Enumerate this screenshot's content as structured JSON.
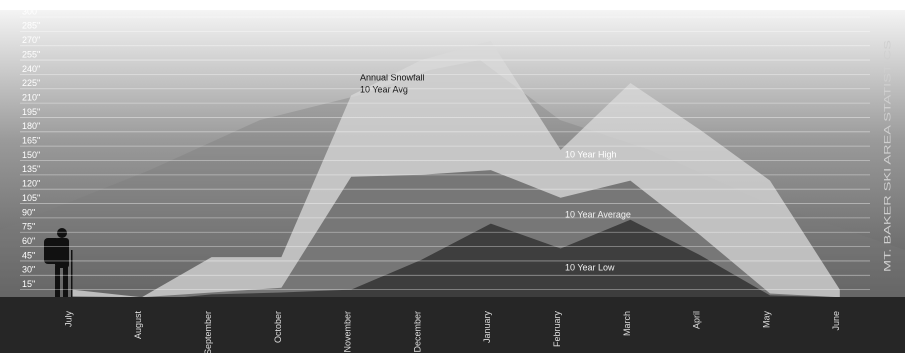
{
  "chart_data": {
    "type": "area",
    "title": "MT. BAKER SKI AREA STATISTICS",
    "annotation": [
      "Annual Snowfall",
      "10 Year Avg"
    ],
    "categories": [
      "July",
      "August",
      "September",
      "October",
      "November",
      "December",
      "January",
      "February",
      "March",
      "April",
      "May",
      "June"
    ],
    "series": [
      {
        "name": "10 Year  High",
        "color": "#d9d9d9",
        "values": [
          15,
          7,
          49,
          49,
          218,
          255,
          275,
          161,
          231,
          182,
          129,
          15
        ]
      },
      {
        "name": "10 Year Average",
        "color": "#6a6a6a",
        "values": [
          8,
          7,
          12,
          17,
          133,
          135,
          140,
          111,
          129,
          72,
          11,
          7
        ]
      },
      {
        "name": "10 Year Low",
        "color": "#343434",
        "values": [
          5,
          3,
          10,
          12,
          15,
          46,
          84,
          58,
          88,
          51,
          9,
          7
        ]
      }
    ],
    "ylim": [
      0,
      300
    ],
    "yticks": [
      {
        "value": 15,
        "label": "15\""
      },
      {
        "value": 30,
        "label": "30\""
      },
      {
        "value": 45,
        "label": "45\""
      },
      {
        "value": 60,
        "label": "60\""
      },
      {
        "value": 75,
        "label": "75\""
      },
      {
        "value": 90,
        "label": "90\""
      },
      {
        "value": 105,
        "label": "105\""
      },
      {
        "value": 120,
        "label": "120\""
      },
      {
        "value": 135,
        "label": "135\""
      },
      {
        "value": 150,
        "label": "150\""
      },
      {
        "value": 165,
        "label": "165\""
      },
      {
        "value": 180,
        "label": "180\""
      },
      {
        "value": 195,
        "label": "195\""
      },
      {
        "value": 210,
        "label": "210\""
      },
      {
        "value": 225,
        "label": "225\""
      },
      {
        "value": 240,
        "label": "240\""
      },
      {
        "value": 255,
        "label": "255\""
      },
      {
        "value": 270,
        "label": "270\""
      },
      {
        "value": 285,
        "label": "285\""
      },
      {
        "value": 300,
        "label": "300\""
      }
    ],
    "grid": true
  }
}
